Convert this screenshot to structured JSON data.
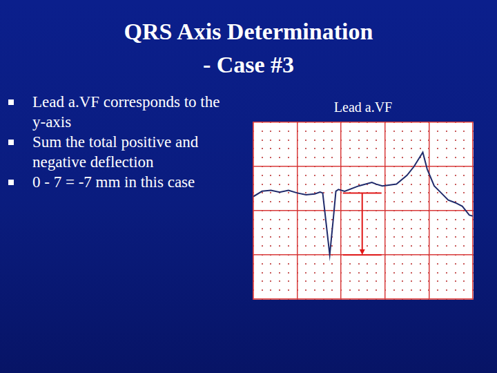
{
  "slide": {
    "title": [
      "QRS Axis Determination",
      "- Case #3"
    ],
    "bullets": [
      "Lead a.VF corresponds to the y-axis",
      "Sum the total positive and negative deflection",
      "0 - 7 = -7 mm in this case"
    ]
  },
  "chart_data": {
    "type": "line",
    "title": "Lead a.VF",
    "x": [
      0,
      1,
      2,
      3,
      4,
      5,
      6,
      7,
      7.6,
      7.9,
      8.3,
      8.7,
      9.1,
      9.4,
      9.7,
      10.4,
      12,
      13.5,
      14,
      14.7,
      16.3,
      17.5,
      18.3,
      19.3,
      19.8,
      20.6,
      21.4,
      22.2,
      23,
      23.8,
      24.6,
      25
    ],
    "values": [
      -0.4,
      0.2,
      0.3,
      0.1,
      0.3,
      0,
      -0.2,
      -0.1,
      0.1,
      0,
      -3.5,
      -7,
      -3,
      0.2,
      0.4,
      0.2,
      0.8,
      1.2,
      1,
      0.8,
      1,
      2,
      3,
      4.6,
      2.7,
      0.8,
      0,
      -0.8,
      -1.1,
      -1.5,
      -2.5,
      -2.6
    ],
    "color": "#1f2a6b",
    "xlim": [
      0,
      25
    ],
    "xticks": [
      0,
      5,
      10,
      15,
      20,
      25
    ],
    "ylim": [
      -12,
      8
    ],
    "yticks": [
      -12,
      -7,
      -2,
      3,
      8
    ],
    "grid": true,
    "tick_labels": false,
    "measurement": {
      "x": [
        10.2,
        14.6
      ],
      "y": [
        0,
        -7
      ]
    }
  }
}
